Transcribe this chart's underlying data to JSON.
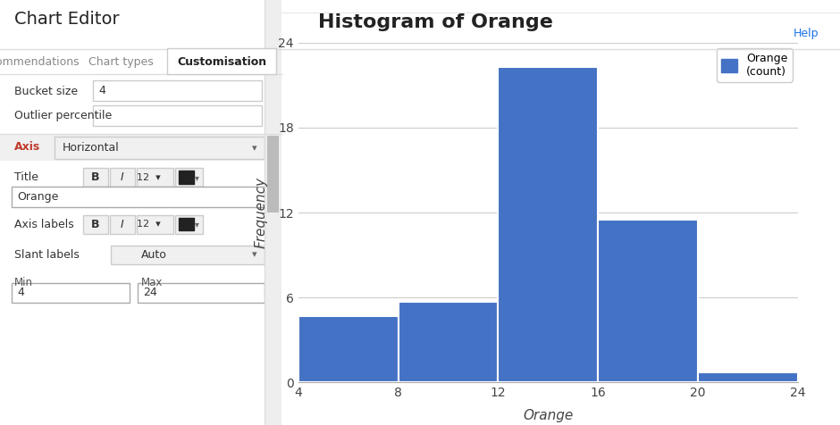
{
  "title": "Histogram of Orange",
  "chart_title_fontsize": 16,
  "chart_title_fontweight": "bold",
  "bar_edges": [
    4,
    8,
    12,
    16,
    20,
    24
  ],
  "bar_heights": [
    4.7,
    5.7,
    22.3,
    11.5,
    0.7
  ],
  "bar_color": "#4472c4",
  "bar_edgecolor": "#ffffff",
  "xlabel": "Orange",
  "ylabel": "Frequency",
  "xlabel_fontstyle": "italic",
  "ylabel_fontstyle": "italic",
  "xlim": [
    4,
    24
  ],
  "ylim": [
    0,
    24
  ],
  "yticks": [
    0,
    6,
    12,
    18,
    24
  ],
  "xticks": [
    4,
    8,
    12,
    16,
    20,
    24
  ],
  "legend_label": "Orange\n(count)",
  "chart_bg": "#ffffff",
  "grid_color": "#cccccc",
  "field_bucket_size": "4",
  "field_min": "4",
  "field_max": "24",
  "help_text": "Help"
}
